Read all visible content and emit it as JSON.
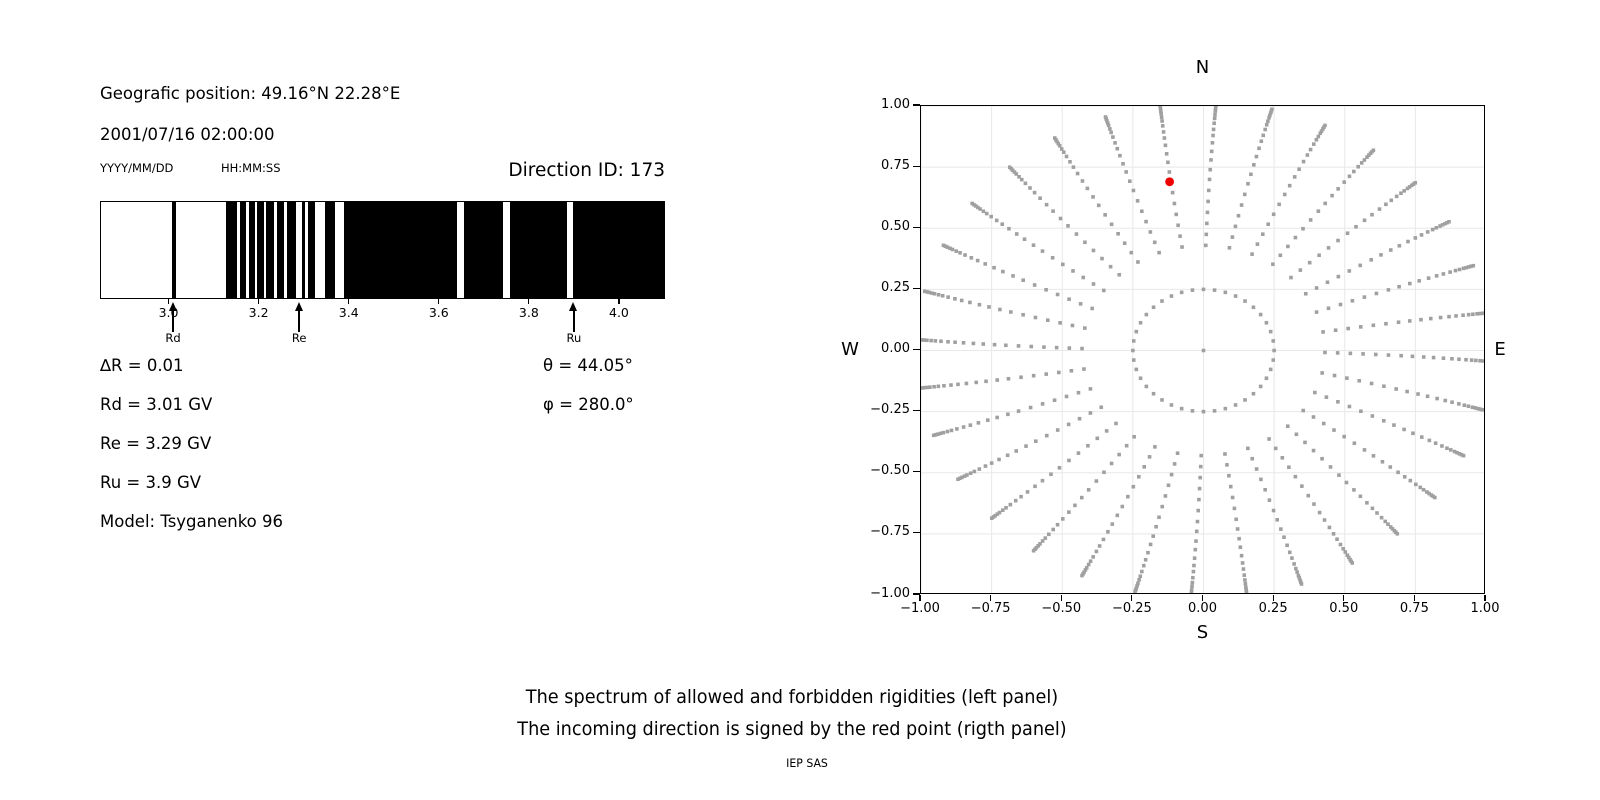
{
  "colors": {
    "text": "#000000",
    "dot_gray": "#a0a0a0",
    "red_point": "#ee0000",
    "grid": "#e8e8e8",
    "forbidden_black": "#000000"
  },
  "header": {
    "geographic_position": "Geografic position: 49.16°N 22.28°E",
    "datetime": "2001/07/16 02:00:00",
    "date_format_hint": "YYYY/MM/DD",
    "time_format_hint": "HH:MM:SS",
    "direction_id": "Direction ID: 173"
  },
  "stats": {
    "delta_r": "∆R = 0.01",
    "rd": "Rd = 3.01 GV",
    "re": "Re = 3.29 GV",
    "ru": "Ru = 3.9 GV",
    "model": "Model: Tsyganenko 96",
    "theta": "θ = 44.05°",
    "phi": "φ = 280.0°"
  },
  "chart_data": [
    {
      "type": "bar",
      "name": "rigidity-spectrum-barcode",
      "description": "Spectrum of allowed (white) and forbidden (black) rigidities",
      "xlabel_unit": "GV",
      "xlim": [
        2.85,
        4.1
      ],
      "xtick_values": [
        3.0,
        3.2,
        3.4,
        3.6,
        3.8,
        4.0
      ],
      "xtick_labels": [
        "3.0",
        "3.2",
        "3.4",
        "3.6",
        "3.8",
        "4.0"
      ],
      "forbidden_intervals_gv": [
        [
          3.007,
          3.017
        ],
        [
          3.128,
          3.153
        ],
        [
          3.159,
          3.173
        ],
        [
          3.179,
          3.192
        ],
        [
          3.197,
          3.212
        ],
        [
          3.217,
          3.234
        ],
        [
          3.24,
          3.257
        ],
        [
          3.263,
          3.282
        ],
        [
          3.296,
          3.304
        ],
        [
          3.31,
          3.325
        ],
        [
          3.348,
          3.37
        ],
        [
          3.389,
          3.64
        ],
        [
          3.655,
          3.742
        ],
        [
          3.757,
          3.885
        ],
        [
          3.899,
          4.1
        ]
      ],
      "markers": [
        {
          "label": "Rd",
          "value_gv": 3.01
        },
        {
          "label": "Re",
          "value_gv": 3.29
        },
        {
          "label": "Ru",
          "value_gv": 3.9
        }
      ]
    },
    {
      "type": "scatter",
      "name": "incoming-direction-map",
      "title": "N",
      "compass": {
        "north": "N",
        "south": "S",
        "east": "E",
        "west": "W"
      },
      "xlim": [
        -1.0,
        1.0
      ],
      "ylim": [
        -1.0,
        1.0
      ],
      "xtick_values": [
        -1.0,
        -0.75,
        -0.5,
        -0.25,
        0.0,
        0.25,
        0.5,
        0.75,
        1.0
      ],
      "xtick_labels": [
        "−1.00",
        "−0.75",
        "−0.50",
        "−0.25",
        "0.00",
        "0.25",
        "0.50",
        "0.75",
        "1.00"
      ],
      "ytick_values": [
        1.0,
        0.75,
        0.5,
        0.25,
        0.0,
        -0.25,
        -0.5,
        -0.75,
        -1.0
      ],
      "ytick_labels": [
        "1.00",
        "0.75",
        "0.50",
        "0.25",
        "0.00",
        "−0.25",
        "−0.50",
        "−0.75",
        "−1.00"
      ],
      "grid": true,
      "center_dot": [
        0.0,
        0.0
      ],
      "inner_ring": {
        "radius": 0.25,
        "num_dots": 40
      },
      "spokes": {
        "count": 32,
        "angle_step_deg": 11.25,
        "start_angle_deg": 0,
        "clockwise_drift_deg_per_r": 2.5,
        "radii": [
          0.43,
          0.475,
          0.52,
          0.565,
          0.61,
          0.655,
          0.7,
          0.74,
          0.78,
          0.815,
          0.85,
          0.88,
          0.905,
          0.93,
          0.95,
          0.965,
          0.98,
          0.99,
          1.0,
          1.008,
          1.016
        ]
      },
      "red_point": {
        "x": -0.12,
        "y": 0.69
      }
    }
  ],
  "footer": {
    "line1": "The spectrum of allowed and forbidden rigidities (left panel)",
    "line2": "The incoming direction is signed by the red point (rigth panel)",
    "credit": "IEP SAS"
  }
}
